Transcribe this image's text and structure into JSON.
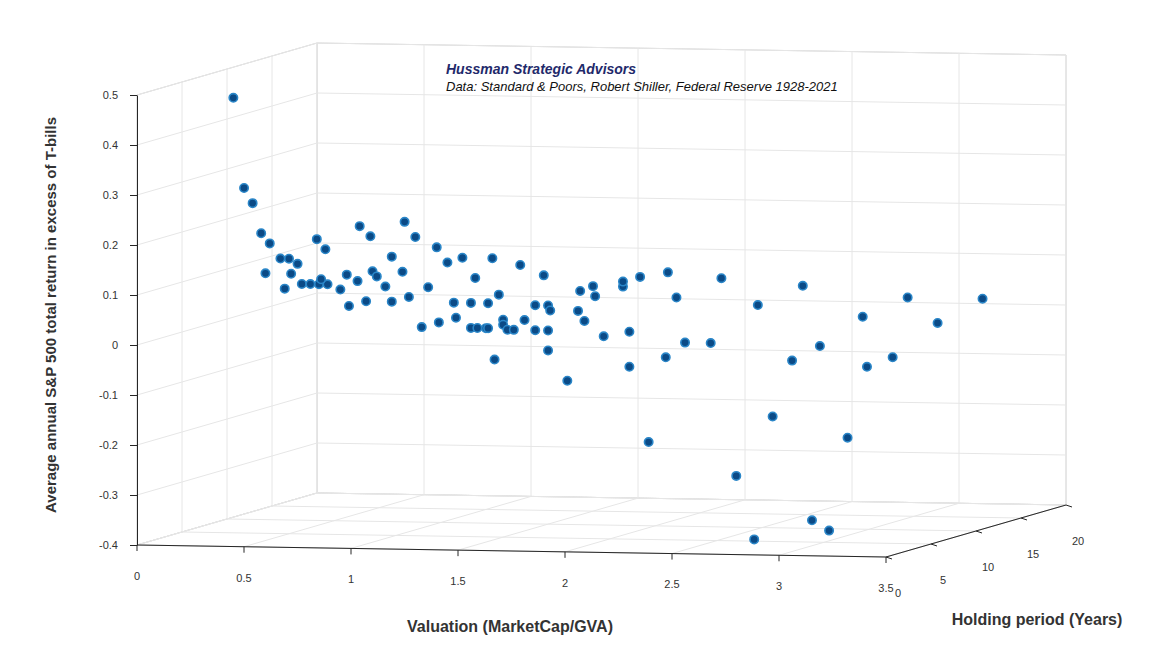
{
  "chart_data": {
    "type": "scatter",
    "title": "Hussman Strategic Advisors",
    "subtitle": "Data: Standard & Poors, Robert Shiller, Federal Reserve 1928-2021",
    "xlabel": "Valuation (MarketCap/GVA)",
    "ylabel": "Holding period (Years)",
    "zlabel": "Average annual S&P 500 total return in excess of T-bills",
    "x": [
      0.24,
      0.29,
      0.33,
      0.37,
      0.41,
      0.39,
      0.46,
      0.5,
      0.48,
      0.51,
      0.54,
      0.56,
      0.6,
      0.63,
      0.64,
      0.67,
      0.68,
      0.65,
      0.74,
      0.77,
      0.57,
      0.61,
      0.62,
      0.65,
      0.67,
      0.68,
      0.7,
      0.74,
      0.77,
      0.77,
      0.82,
      0.83,
      0.85,
      0.88,
      0.91,
      0.94,
      0.98,
      0.99,
      1.03,
      1.06,
      1.07,
      1.1,
      1.14,
      1.14,
      1.16,
      1.17,
      1.21,
      1.22,
      1.24,
      1.22,
      1.04,
      1.06,
      1.08,
      1.08,
      1.1,
      1.13,
      1.16,
      1.18,
      1.23,
      1.23,
      1.27,
      1.29,
      1.29,
      1.29,
      1.3,
      1.38,
      1.43,
      1.44,
      1.46,
      1.5,
      1.51,
      1.55,
      1.64,
      1.64,
      1.67,
      1.72,
      1.67,
      1.76,
      1.85,
      1.84,
      1.89,
      1.93,
      2.1,
      2.05,
      2.59,
      2.06,
      2.8,
      2.76,
      2.22,
      2.27,
      3.07,
      2.35,
      3.15,
      3.11,
      2.55,
      2.57,
      2.69,
      2.76,
      2.9,
      3.11
    ],
    "y": [
      5,
      5,
      5,
      5,
      5,
      5,
      5,
      5,
      5,
      5,
      5,
      5,
      5,
      5,
      5,
      5,
      5,
      5,
      5,
      5,
      10,
      10,
      10,
      10,
      10,
      10,
      10,
      10,
      10,
      10,
      10,
      10,
      10,
      10,
      10,
      10,
      10,
      10,
      10,
      10,
      10,
      10,
      10,
      10,
      10,
      10,
      10,
      10,
      10,
      10,
      15,
      15,
      15,
      15,
      15,
      15,
      15,
      15,
      15,
      15,
      15,
      15,
      15,
      15,
      15,
      15,
      15,
      15,
      15,
      15,
      15,
      15,
      15,
      15,
      15,
      15,
      15,
      15,
      15,
      15,
      15,
      15,
      15,
      15,
      5,
      20,
      2,
      5,
      20,
      20,
      2,
      20,
      2,
      5,
      20,
      20,
      20,
      20,
      20,
      20
    ],
    "z": [
      0.47,
      0.29,
      0.26,
      0.2,
      0.18,
      0.12,
      0.15,
      0.15,
      0.09,
      0.12,
      0.14,
      0.1,
      0.1,
      0.19,
      0.1,
      0.17,
      0.1,
      0.11,
      0.09,
      0.12,
      0.03,
      0.08,
      0.19,
      0.04,
      0.17,
      0.1,
      0.09,
      0.07,
      0.13,
      0.04,
      0.1,
      0.2,
      0.05,
      0.17,
      -0.01,
      0.07,
      0.15,
      0,
      0.12,
      0.04,
      0.01,
      0.13,
      0.04,
      -0.01,
      0.09,
      -0.01,
      -0.01,
      -0.01,
      0.13,
      0.04,
      -0.1,
      0.03,
      -0.02,
      -0.03,
      -0.04,
      -0.04,
      0.09,
      -0.02,
      0.01,
      -0.04,
      0.07,
      0.01,
      -0.04,
      -0.08,
      0,
      -0.14,
      0,
      0.04,
      -0.02,
      0.05,
      0.03,
      -0.05,
      0.05,
      0.06,
      -0.04,
      0.07,
      -0.11,
      -0.26,
      0.08,
      -0.09,
      0.03,
      -0.06,
      0.07,
      -0.06,
      -0.27,
      -0.01,
      -0.38,
      -0.15,
      -0.12,
      0.03,
      -0.34,
      -0.09,
      -0.36,
      -0.19,
      -0.03,
      -0.13,
      -0.11,
      0.01,
      -0.04,
      0.01
    ],
    "xlim": [
      0,
      3.5
    ],
    "xticks": [
      0,
      0.5,
      1,
      1.5,
      2,
      2.5,
      3,
      3.5
    ],
    "ylim": [
      0,
      20
    ],
    "yticks": [
      0,
      5,
      10,
      15,
      20
    ],
    "zlim": [
      -0.4,
      0.5
    ],
    "zticks": [
      -0.4,
      -0.3,
      -0.2,
      -0.1,
      0,
      0.1,
      0.2,
      0.3,
      0.4,
      0.5
    ],
    "color": "#0b4a86",
    "marker": "circle",
    "grid": true
  }
}
